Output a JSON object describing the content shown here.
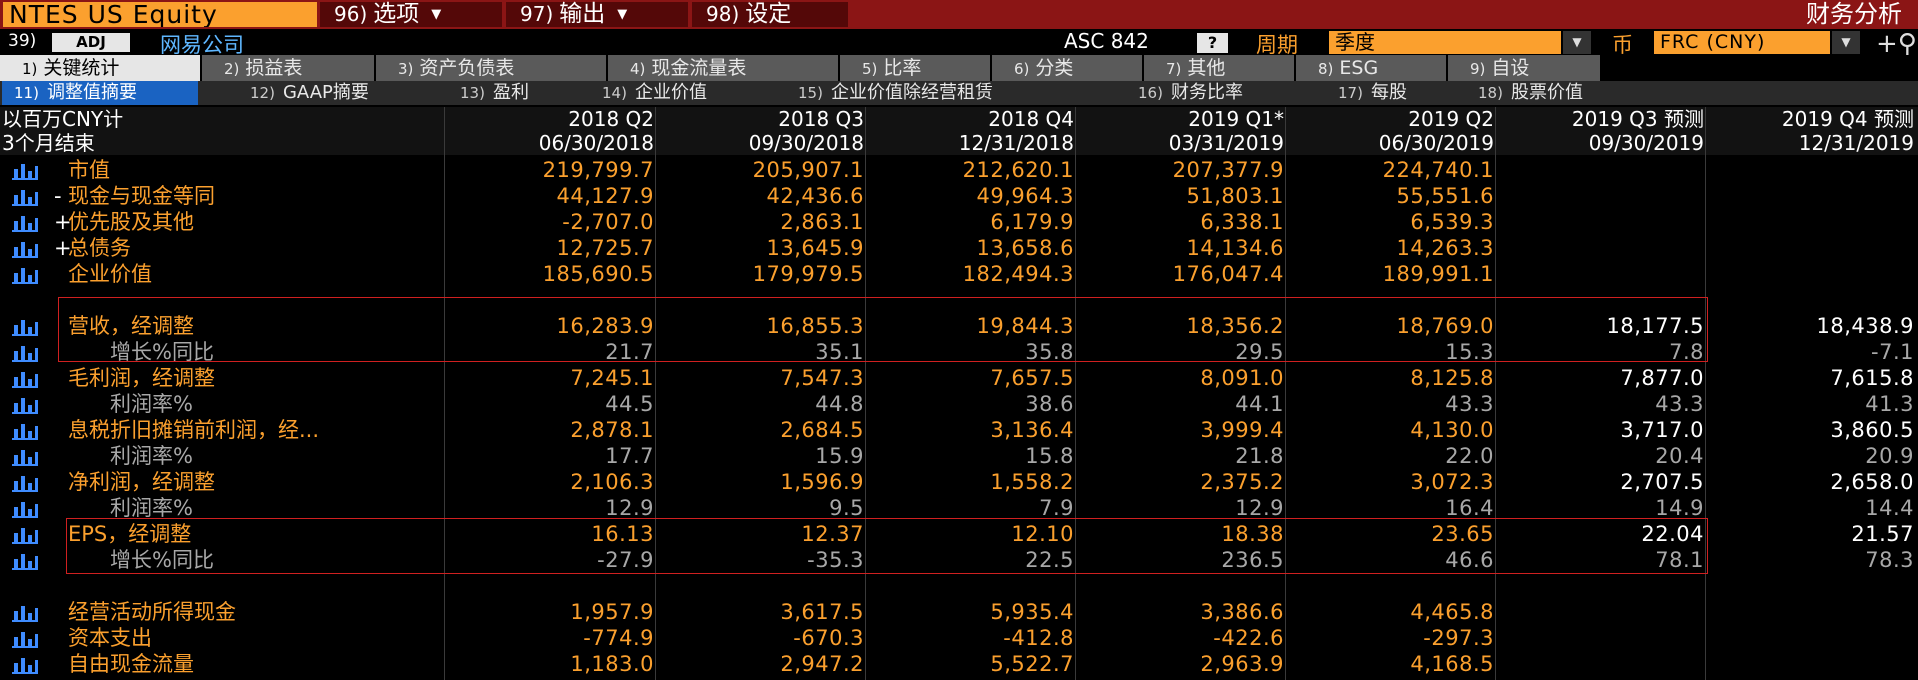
{
  "titlebar": {
    "ticker": "NTES US Equity",
    "menu": [
      {
        "num": "96)",
        "label": "选项",
        "arrow": "▼"
      },
      {
        "num": "97)",
        "label": "输出",
        "arrow": "▼"
      },
      {
        "num": "98)",
        "label": "设定",
        "arrow": ""
      }
    ],
    "title": "财务分析"
  },
  "row2": {
    "num": "39)",
    "adj": "ADJ",
    "company": "网易公司",
    "standard": "ASC 842",
    "help": "?",
    "period_label": "周期",
    "period_value": "季度",
    "currency_label": "币",
    "currency_value": "FRC (CNY)",
    "dropdown_arrow": "▼",
    "add_icon": "+⚲"
  },
  "tabs": [
    {
      "num": "1)",
      "label": "关键统计"
    },
    {
      "num": "2)",
      "label": "损益表"
    },
    {
      "num": "3)",
      "label": "资产负债表"
    },
    {
      "num": "4)",
      "label": "现金流量表"
    },
    {
      "num": "5)",
      "label": "比率"
    },
    {
      "num": "6)",
      "label": "分类"
    },
    {
      "num": "7)",
      "label": "其他"
    },
    {
      "num": "8)",
      "label": "ESG"
    },
    {
      "num": "9)",
      "label": "自设"
    }
  ],
  "subtabs": [
    {
      "num": "11)",
      "label": "调整值摘要"
    },
    {
      "num": "12)",
      "label": "GAAP摘要"
    },
    {
      "num": "13)",
      "label": "盈利"
    },
    {
      "num": "14)",
      "label": "企业价值"
    },
    {
      "num": "15)",
      "label": "企业价值除经营租赁"
    },
    {
      "num": "16)",
      "label": "财务比率"
    },
    {
      "num": "17)",
      "label": "每股"
    },
    {
      "num": "18)",
      "label": "股票价值"
    }
  ],
  "header": {
    "unit_label": "以百万CNY计",
    "period_label": "3个月结束",
    "periods": [
      "2018 Q2",
      "2018 Q3",
      "2018 Q4",
      "2019 Q1*",
      "2019 Q2",
      "2019 Q3 预测",
      "2019 Q4 预测"
    ],
    "dates": [
      "06/30/2018",
      "09/30/2018",
      "12/31/2018",
      "03/31/2019",
      "06/30/2019",
      "09/30/2019",
      "12/31/2019"
    ]
  },
  "rows": [
    {
      "label": "市值",
      "prefix": "",
      "style": "main",
      "values": [
        "219,799.7",
        "205,907.1",
        "212,620.1",
        "207,377.9",
        "224,740.1",
        "",
        ""
      ]
    },
    {
      "label": "现金与现金等同",
      "prefix": "-",
      "style": "main",
      "values": [
        "44,127.9",
        "42,436.6",
        "49,964.3",
        "51,803.1",
        "55,551.6",
        "",
        ""
      ]
    },
    {
      "label": "优先股及其他",
      "prefix": "+",
      "style": "main",
      "values": [
        "-2,707.0",
        "2,863.1",
        "6,179.9",
        "6,338.1",
        "6,539.3",
        "",
        ""
      ]
    },
    {
      "label": "总债务",
      "prefix": "+",
      "style": "main",
      "values": [
        "12,725.7",
        "13,645.9",
        "13,658.6",
        "14,134.6",
        "14,263.3",
        "",
        ""
      ]
    },
    {
      "label": "企业价值",
      "prefix": "",
      "style": "main",
      "values": [
        "185,690.5",
        "179,979.5",
        "182,494.3",
        "176,047.4",
        "189,991.1",
        "",
        ""
      ]
    },
    {
      "label": "营收，经调整",
      "prefix": "",
      "style": "main",
      "values": [
        "16,283.9",
        "16,855.3",
        "19,844.3",
        "18,356.2",
        "18,769.0",
        "18,177.5",
        "18,438.9"
      ]
    },
    {
      "label": "增长%同比",
      "prefix": "",
      "style": "sub",
      "values": [
        "21.7",
        "35.1",
        "35.8",
        "29.5",
        "15.3",
        "7.8",
        "-7.1"
      ]
    },
    {
      "label": "毛利润，经调整",
      "prefix": "",
      "style": "main",
      "values": [
        "7,245.1",
        "7,547.3",
        "7,657.5",
        "8,091.0",
        "8,125.8",
        "7,877.0",
        "7,615.8"
      ]
    },
    {
      "label": "利润率%",
      "prefix": "",
      "style": "sub",
      "values": [
        "44.5",
        "44.8",
        "38.6",
        "44.1",
        "43.3",
        "43.3",
        "41.3"
      ]
    },
    {
      "label": "息税折旧摊销前利润，经...",
      "prefix": "",
      "style": "main",
      "values": [
        "2,878.1",
        "2,684.5",
        "3,136.4",
        "3,999.4",
        "4,130.0",
        "3,717.0",
        "3,860.5"
      ]
    },
    {
      "label": "利润率%",
      "prefix": "",
      "style": "sub",
      "values": [
        "17.7",
        "15.9",
        "15.8",
        "21.8",
        "22.0",
        "20.4",
        "20.9"
      ]
    },
    {
      "label": "净利润，经调整",
      "prefix": "",
      "style": "main",
      "values": [
        "2,106.3",
        "1,596.9",
        "1,558.2",
        "2,375.2",
        "3,072.3",
        "2,707.5",
        "2,658.0"
      ]
    },
    {
      "label": "利润率%",
      "prefix": "",
      "style": "sub",
      "values": [
        "12.9",
        "9.5",
        "7.9",
        "12.9",
        "16.4",
        "14.9",
        "14.4"
      ]
    },
    {
      "label": "EPS，经调整",
      "prefix": "",
      "style": "main",
      "values": [
        "16.13",
        "12.37",
        "12.10",
        "18.38",
        "23.65",
        "22.04",
        "21.57"
      ]
    },
    {
      "label": "增长%同比",
      "prefix": "",
      "style": "sub",
      "values": [
        "-27.9",
        "-35.3",
        "22.5",
        "236.5",
        "46.6",
        "78.1",
        "78.3"
      ]
    },
    {
      "label": "经营活动所得现金",
      "prefix": "",
      "style": "main",
      "values": [
        "1,957.9",
        "3,617.5",
        "5,935.4",
        "3,386.6",
        "4,465.8",
        "",
        ""
      ]
    },
    {
      "label": "资本支出",
      "prefix": "",
      "style": "main",
      "values": [
        "-774.9",
        "-670.3",
        "-412.8",
        "-422.6",
        "-297.3",
        "",
        ""
      ]
    },
    {
      "label": "自由现金流量",
      "prefix": "",
      "style": "main",
      "values": [
        "1,183.0",
        "2,947.2",
        "5,522.7",
        "2,963.9",
        "4,168.5",
        "",
        ""
      ]
    }
  ],
  "colors": {
    "titlebar": "#8b1515",
    "ticker_bg": "#fba02e",
    "accent_orange": "#fba02e",
    "active_subtab": "#1a63c2",
    "highlight_border": "#d02020",
    "chart_icon": "#3f8cff"
  }
}
